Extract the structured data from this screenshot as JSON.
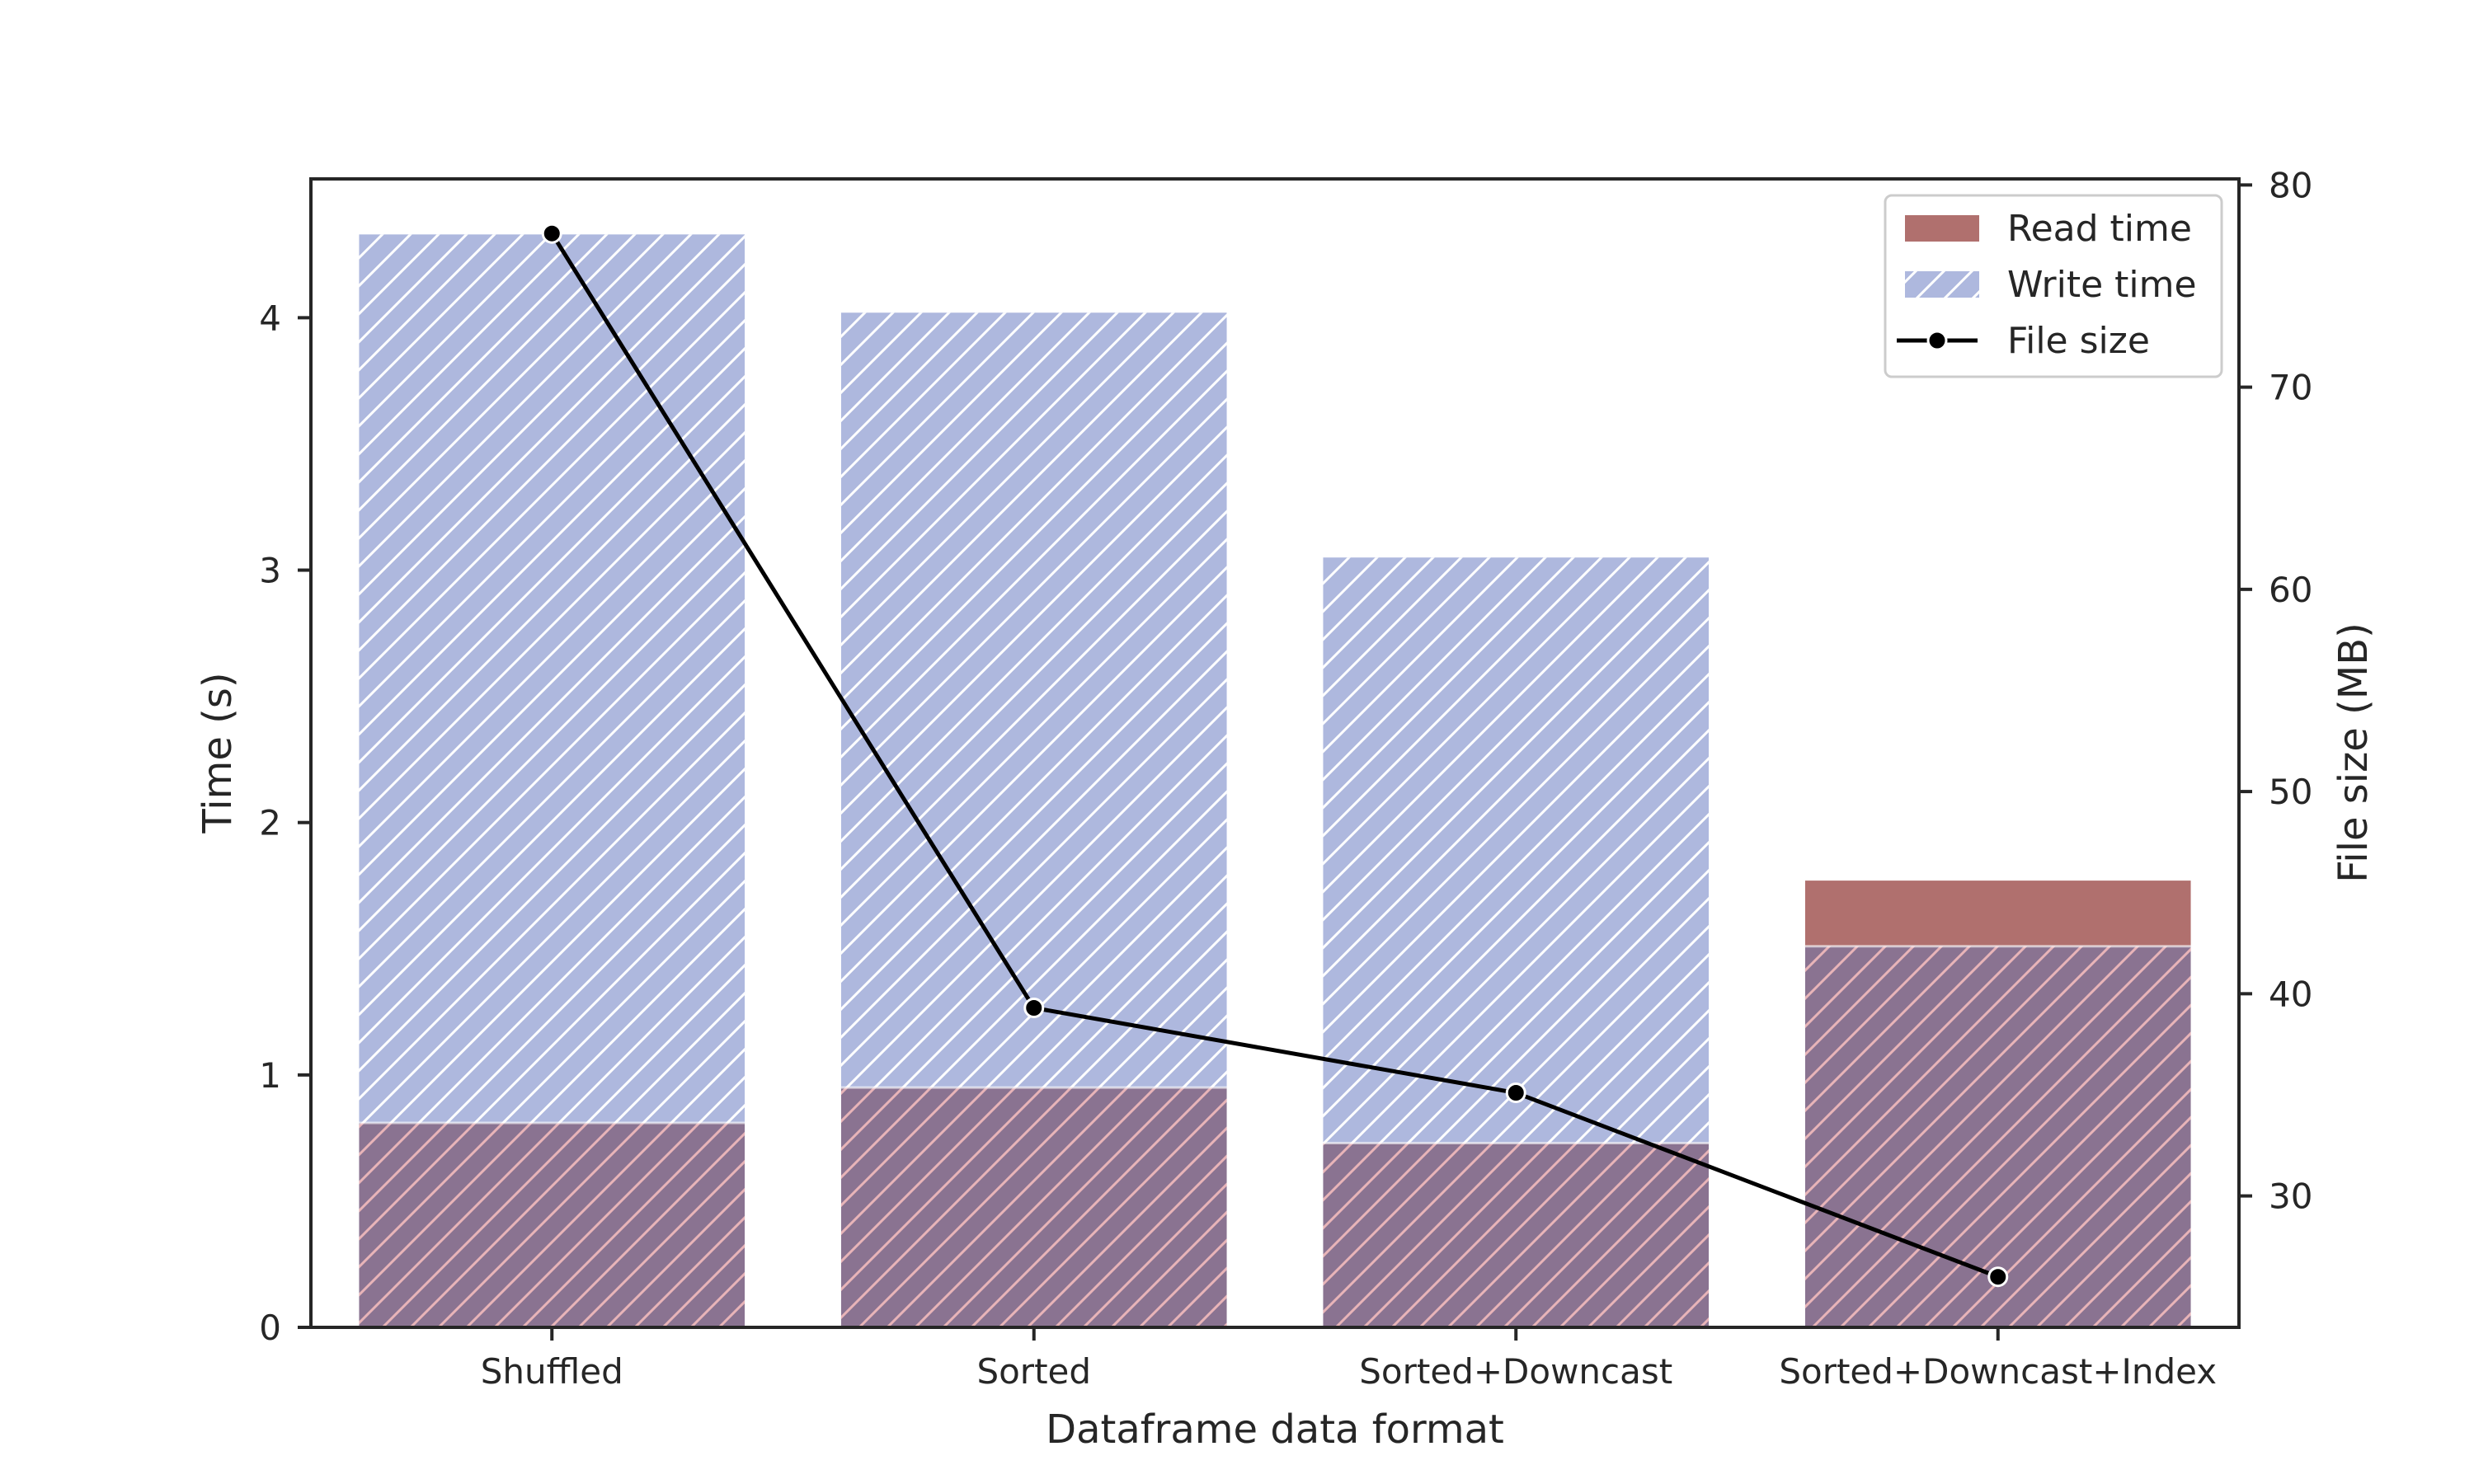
{
  "chart_data": {
    "type": "bar",
    "xlabel": "Dataframe data format",
    "ylabel": "Time (s)",
    "y2label": "File size (MB)",
    "categories": [
      "Shuffled",
      "Sorted",
      "Sorted+Downcast",
      "Sorted+Downcast+Index"
    ],
    "ylim": [
      0,
      4.55
    ],
    "yticks": [
      0,
      1,
      2,
      3,
      4
    ],
    "y2lim": [
      23.5,
      80.3
    ],
    "y2ticks": [
      30,
      40,
      50,
      60,
      70,
      80
    ],
    "series": [
      {
        "name": "Read time",
        "kind": "bar",
        "color": "#b0706e",
        "values": [
          0.81,
          0.95,
          0.73,
          1.77
        ]
      },
      {
        "name": "Write time",
        "kind": "bar",
        "hatch": "diagonal",
        "color": "#aeb8de",
        "values": [
          4.33,
          4.02,
          3.05,
          1.51
        ]
      },
      {
        "name": "File size",
        "kind": "line",
        "axis": "secondary",
        "color": "#000000",
        "values": [
          77.6,
          39.3,
          35.1,
          26.0
        ]
      }
    ],
    "legend_position": "top-right",
    "overlap_color": "#8a7391"
  }
}
